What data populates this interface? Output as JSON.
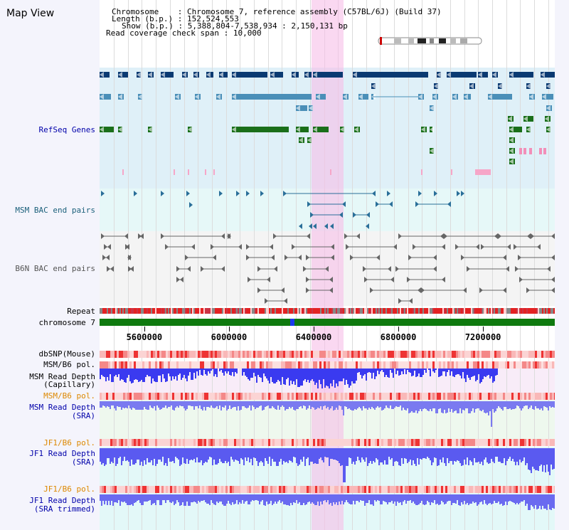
{
  "page_title": "Map View",
  "header": {
    "chromosome_key": "Chromosome",
    "chromosome_value": "Chromosome 7, reference assembly (C57BL/6J) (Build 37)",
    "length_key": "Length (b.p.)",
    "length_value": "152,524,553",
    "show_key": "Show (b.p.)",
    "show_value": "5,388,804-7,538,934 : 2,150,131 bp",
    "coverage_key": "Read coverage check span",
    "coverage_value": "10,000"
  },
  "tracks": {
    "refseq": "RefSeq Genes",
    "msm_bac": "MSM BAC end pairs",
    "b6n_bac": "B6N BAC end pairs",
    "repeat": "Repeat",
    "chromosome": "chromosome 7",
    "dbsnp": "dbSNP(Mouse)",
    "msm_b6_pol_1": "MSM/B6 pol.",
    "msm_depth_cap_1": "MSM Read Depth",
    "msm_depth_cap_2": "(Capillary)",
    "msm_b6_pol_2": "MSM/B6 pol.",
    "msm_depth_sra_1": "MSM Read Depth",
    "msm_depth_sra_2": "(SRA)",
    "jf1_b6_pol_1": "JF1/B6 pol.",
    "jf1_depth_sra_1": "JF1 Read Depth",
    "jf1_depth_sra_2": "(SRA)",
    "jf1_b6_pol_2": "JF1/B6 pol.",
    "jf1_depth_trim_1": "JF1 Read Depth",
    "jf1_depth_trim_2": "(SRA trimmed)"
  },
  "axis": {
    "ticks": [
      {
        "label": "5600000",
        "value": 5600000
      },
      {
        "label": "6000000",
        "value": 6000000
      },
      {
        "label": "6400000",
        "value": 6400000
      },
      {
        "label": "6800000",
        "value": 6800000
      },
      {
        "label": "7200000",
        "value": 7200000
      }
    ],
    "range": [
      5388804,
      7538934
    ]
  },
  "highlight_range": [
    6390000,
    6540000
  ],
  "colors": {
    "refseq_dark": "#0a3a72",
    "refseq_mid": "#4a8fb8",
    "refseq_green": "#1a6f1a",
    "msm_bac": "#2a6f99",
    "b6n_bac": "#666666",
    "chromosome_bar": "#0f7a0f",
    "depth_blue": "#3333ee",
    "highlight": "#f9dcf2",
    "label_blue": "#0000aa",
    "label_orange": "#dd8800",
    "label_teal": "#1a5f7a"
  }
}
